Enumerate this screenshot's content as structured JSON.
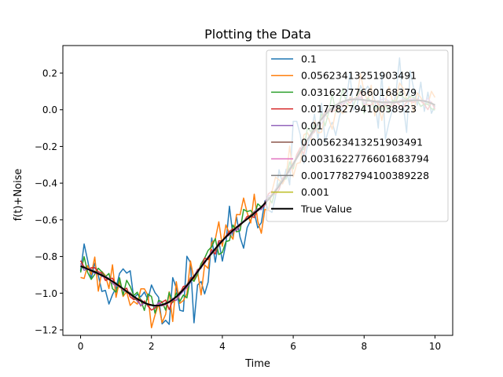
{
  "chart_data": {
    "type": "line",
    "title": "Plotting the Data",
    "xlabel": "Time",
    "ylabel": "f(t)+Noise",
    "xlim": [
      -0.5,
      10.5
    ],
    "ylim": [
      -1.23,
      0.35
    ],
    "xticks": [
      0,
      2,
      4,
      6,
      8,
      10
    ],
    "yticks": [
      -1.2,
      -1.0,
      -0.8,
      -0.6,
      -0.4,
      -0.2,
      0.0,
      0.2
    ],
    "xtick_labels": [
      "0",
      "2",
      "4",
      "6",
      "8",
      "10"
    ],
    "ytick_labels": [
      "−1.2",
      "−1.0",
      "−0.8",
      "−0.6",
      "−0.4",
      "−0.2",
      "0.0",
      "0.2"
    ],
    "grid": false,
    "legend_position": "top-right",
    "x_range": [
      0,
      10
    ],
    "n_points": 101,
    "series": [
      {
        "name": "0.1",
        "noise": 0.1,
        "color": "#1f77b4",
        "seed": 11
      },
      {
        "name": "0.05623413251903491",
        "noise": 0.05623413251903491,
        "color": "#ff7f0e",
        "seed": 23
      },
      {
        "name": "0.03162277660168379",
        "noise": 0.03162277660168379,
        "color": "#2ca02c",
        "seed": 37
      },
      {
        "name": "0.01778279410038923",
        "noise": 0.01778279410038923,
        "color": "#d62728",
        "seed": 41
      },
      {
        "name": "0.01",
        "noise": 0.01,
        "color": "#9467bd",
        "seed": 53
      },
      {
        "name": "0.005623413251903491",
        "noise": 0.005623413251903491,
        "color": "#8c564b",
        "seed": 61
      },
      {
        "name": "0.0031622776601683794",
        "noise": 0.0031622776601683794,
        "color": "#e377c2",
        "seed": 73
      },
      {
        "name": "0.0017782794100389228",
        "noise": 0.0017782794100389228,
        "color": "#7f7f7f",
        "seed": 89
      },
      {
        "name": "0.001",
        "noise": 0.001,
        "color": "#bcbd22",
        "seed": 97
      },
      {
        "name": "True Value",
        "noise": 0,
        "color": "#000000",
        "seed": 0
      }
    ]
  }
}
